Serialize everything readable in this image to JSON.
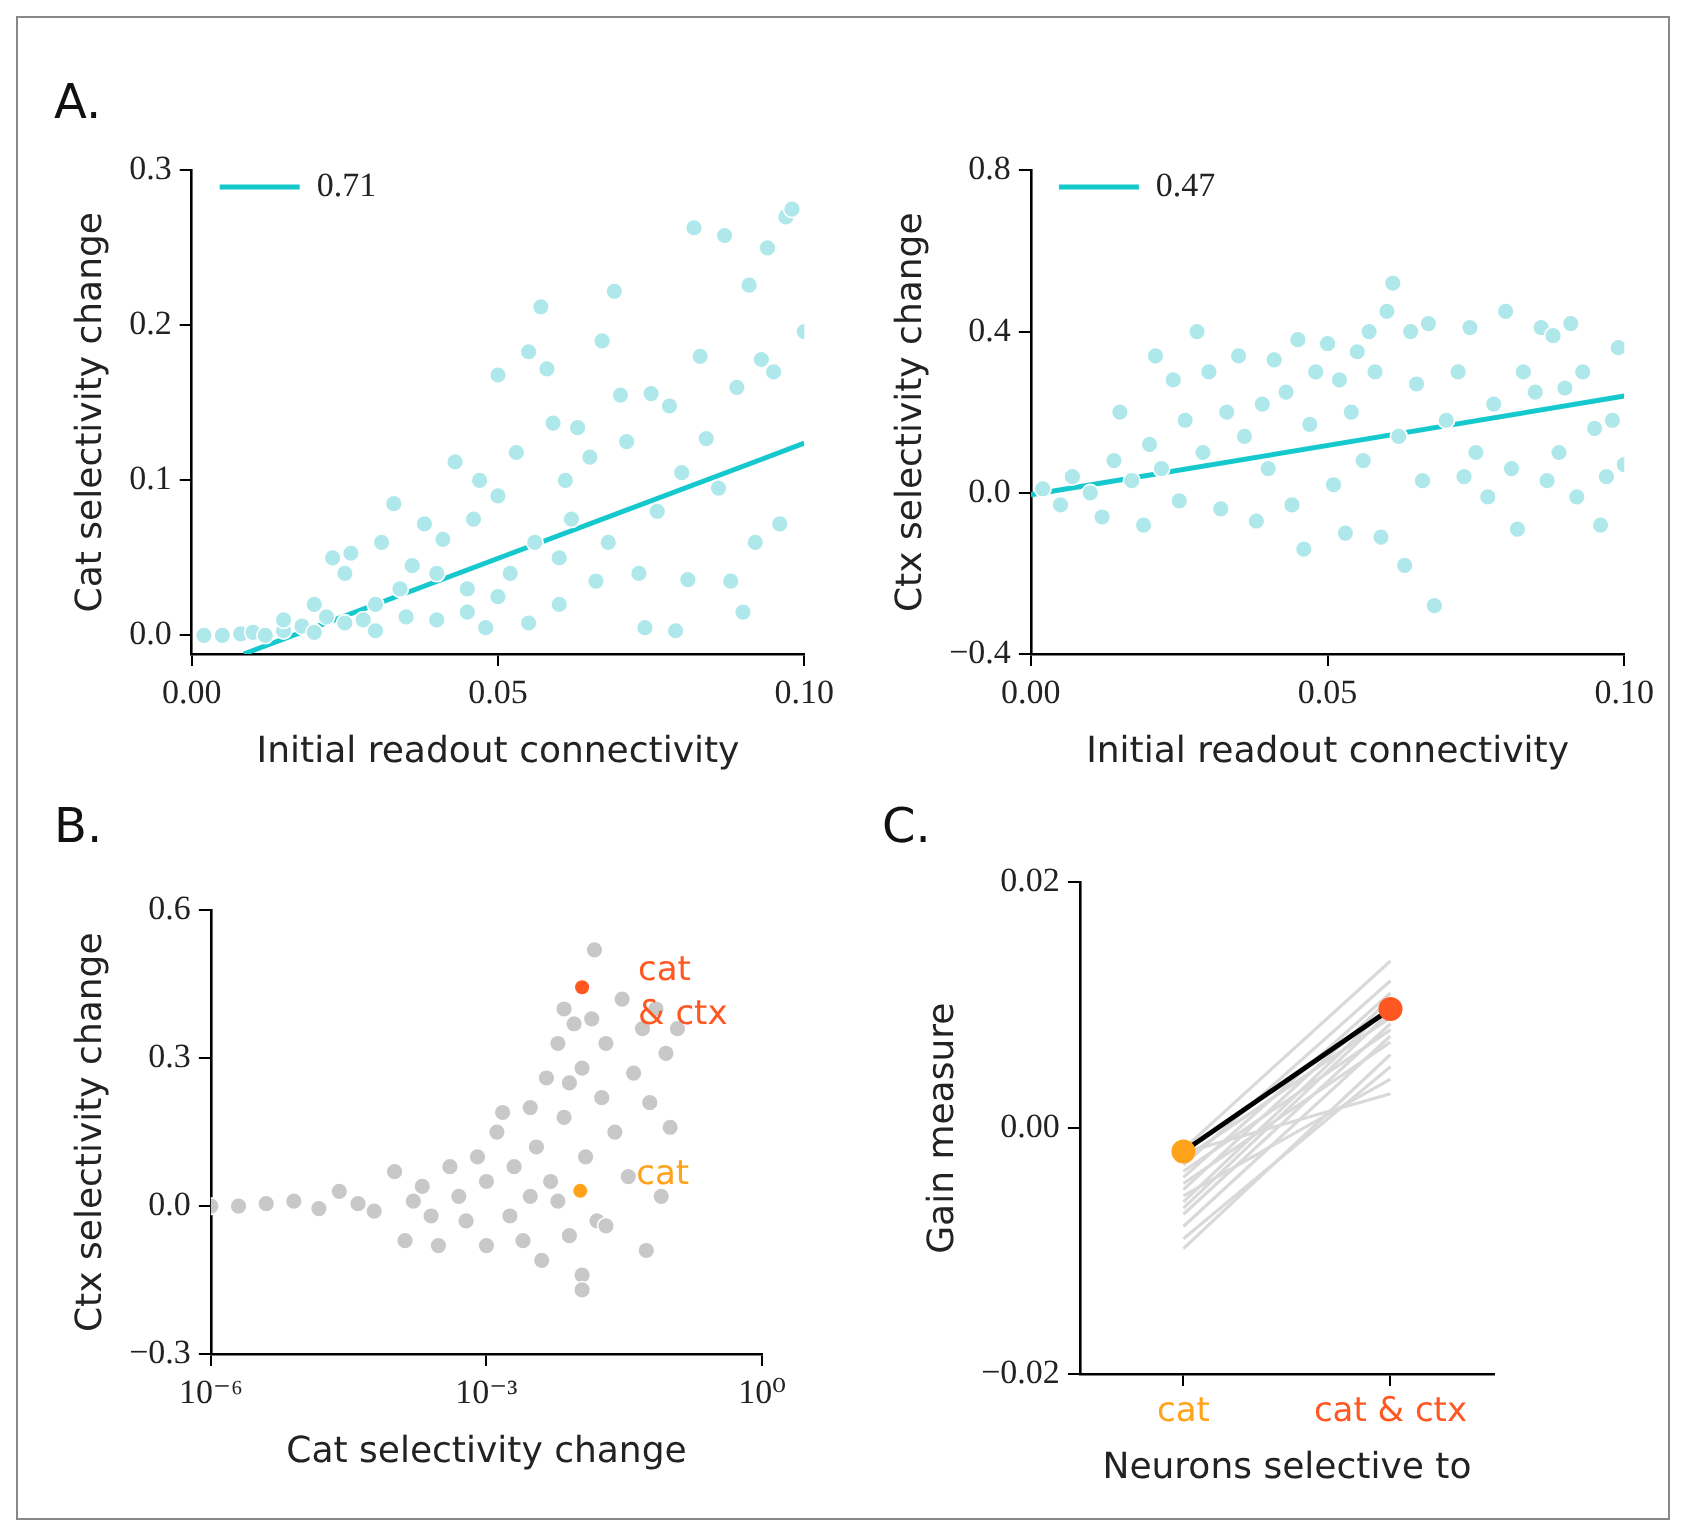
{
  "chart_data": [
    {
      "type": "scatter",
      "title": "A.",
      "xlabel": "Initial readout connectivity",
      "ylabel": "Cat selectivity change",
      "xlim": [
        0,
        0.1
      ],
      "ylim": [
        -0.012,
        0.3
      ],
      "xticks": [
        {
          "value": 0,
          "label": "0.00"
        },
        {
          "value": 0.05,
          "label": "0.05"
        },
        {
          "value": 0.1,
          "label": "0.10"
        }
      ],
      "yticks": [
        {
          "value": 0,
          "label": "0.0"
        },
        0.1,
        0.2,
        0.3
      ],
      "grid": false,
      "legend": "top left",
      "marker": "circle",
      "series": [
        {
          "color": "#aee8ea",
          "x": [
            0.002,
            0.005,
            0.008,
            0.01,
            0.012,
            0.015,
            0.018,
            0.02,
            0.022,
            0.023,
            0.025,
            0.026,
            0.028,
            0.03,
            0.031,
            0.033,
            0.034,
            0.036,
            0.038,
            0.04,
            0.041,
            0.043,
            0.045,
            0.046,
            0.047,
            0.048,
            0.05,
            0.05,
            0.052,
            0.053,
            0.055,
            0.056,
            0.057,
            0.058,
            0.059,
            0.06,
            0.061,
            0.062,
            0.063,
            0.065,
            0.066,
            0.067,
            0.068,
            0.069,
            0.07,
            0.071,
            0.073,
            0.074,
            0.075,
            0.076,
            0.078,
            0.079,
            0.08,
            0.081,
            0.082,
            0.083,
            0.084,
            0.086,
            0.087,
            0.088,
            0.089,
            0.09,
            0.091,
            0.092,
            0.093,
            0.094,
            0.095,
            0.096,
            0.097,
            0.098,
            0.1,
            0.015,
            0.02,
            0.025,
            0.03,
            0.035,
            0.04,
            0.045,
            0.05,
            0.055,
            0.06
          ],
          "values": [
            0,
            0,
            0.001,
            0.002,
            0,
            0.003,
            0.006,
            0.002,
            0.012,
            0.05,
            0.04,
            0.053,
            0.01,
            0.02,
            0.06,
            0.085,
            0.03,
            0.045,
            0.072,
            0.01,
            0.062,
            0.112,
            0.03,
            0.075,
            0.1,
            0.005,
            0.168,
            0.09,
            0.04,
            0.118,
            0.183,
            0.06,
            0.212,
            0.172,
            0.137,
            0.02,
            0.1,
            0.075,
            0.134,
            0.115,
            0.035,
            0.19,
            0.06,
            0.222,
            0.155,
            0.125,
            0.04,
            0.005,
            0.156,
            0.08,
            0.148,
            0.003,
            0.105,
            0.036,
            0.263,
            0.18,
            0.127,
            0.095,
            0.258,
            0.035,
            0.16,
            0.015,
            0.226,
            0.06,
            0.178,
            0.25,
            0.17,
            0.072,
            0.27,
            0.275,
            0.196,
            0.01,
            0.02,
            0.008,
            0.003,
            0.012,
            0.04,
            0.015,
            0.025,
            0.008,
            0.05
          ]
        },
        {
          "type": "line",
          "name": "0.71",
          "color": "#14c8cc",
          "marker": "none",
          "x": [
            0.0085,
            0.1
          ],
          "values": [
            -0.012,
            0.124
          ]
        }
      ]
    },
    {
      "type": "scatter",
      "xlabel": "Initial readout connectivity",
      "ylabel": "Ctx selectivity change",
      "xlim": [
        0,
        0.1
      ],
      "ylim": [
        -0.4,
        0.8
      ],
      "xticks": [
        {
          "value": 0,
          "label": "0.00"
        },
        {
          "value": 0.05,
          "label": "0.05"
        },
        {
          "value": 0.1,
          "label": "0.10"
        }
      ],
      "yticks": [
        {
          "value": -0.4,
          "label": "−0.4"
        },
        {
          "value": 0,
          "label": "0.0"
        },
        0.4,
        0.8
      ],
      "grid": false,
      "legend": "top left",
      "marker": "circle",
      "series": [
        {
          "color": "#aee8ea",
          "x": [
            0.002,
            0.005,
            0.007,
            0.01,
            0.012,
            0.014,
            0.015,
            0.017,
            0.019,
            0.02,
            0.021,
            0.022,
            0.024,
            0.025,
            0.026,
            0.028,
            0.029,
            0.03,
            0.032,
            0.033,
            0.035,
            0.036,
            0.038,
            0.039,
            0.04,
            0.041,
            0.043,
            0.044,
            0.045,
            0.046,
            0.047,
            0.048,
            0.05,
            0.051,
            0.052,
            0.053,
            0.054,
            0.055,
            0.056,
            0.057,
            0.058,
            0.059,
            0.06,
            0.061,
            0.062,
            0.063,
            0.064,
            0.065,
            0.066,
            0.067,
            0.068,
            0.07,
            0.072,
            0.073,
            0.074,
            0.075,
            0.077,
            0.078,
            0.08,
            0.081,
            0.082,
            0.083,
            0.085,
            0.086,
            0.087,
            0.088,
            0.089,
            0.09,
            0.091,
            0.092,
            0.093,
            0.095,
            0.096,
            0.097,
            0.098,
            0.099,
            0.1
          ],
          "values": [
            0.01,
            -0.03,
            0.04,
            0,
            -0.06,
            0.08,
            0.2,
            0.03,
            -0.08,
            0.12,
            0.34,
            0.06,
            0.28,
            -0.02,
            0.18,
            0.4,
            0.1,
            0.3,
            -0.04,
            0.2,
            0.34,
            0.14,
            -0.07,
            0.22,
            0.06,
            0.33,
            0.25,
            -0.03,
            0.38,
            -0.14,
            0.17,
            0.3,
            0.37,
            0.02,
            0.28,
            -0.1,
            0.2,
            0.35,
            0.08,
            0.4,
            0.3,
            -0.11,
            0.45,
            0.52,
            0.14,
            -0.18,
            0.4,
            0.27,
            0.03,
            0.42,
            -0.28,
            0.18,
            0.3,
            0.04,
            0.41,
            0.1,
            -0.01,
            0.22,
            0.45,
            0.06,
            -0.09,
            0.3,
            0.25,
            0.41,
            0.03,
            0.39,
            0.1,
            0.26,
            0.42,
            -0.01,
            0.3,
            0.16,
            -0.08,
            0.04,
            0.18,
            0.36,
            0.07
          ]
        },
        {
          "type": "line",
          "name": "0.47",
          "color": "#14c8cc",
          "marker": "none",
          "x": [
            0,
            0.1
          ],
          "values": [
            -0.005,
            0.24
          ]
        }
      ]
    },
    {
      "type": "scatter",
      "title": "B.",
      "xlabel": "Cat selectivity change",
      "ylabel": "Ctx selectivity change",
      "log": "x",
      "xlim": [
        1e-06,
        1
      ],
      "ylim": [
        -0.3,
        0.6
      ],
      "xticks": [
        {
          "value": 1e-06,
          "label": "10⁻⁶"
        },
        {
          "value": 0.001,
          "label": "10⁻³"
        },
        {
          "value": 1,
          "label": "10⁰"
        }
      ],
      "yticks": [
        {
          "value": -0.3,
          "label": "−0.3"
        },
        {
          "value": 0,
          "label": "0.0"
        },
        0.3,
        0.6
      ],
      "grid": false,
      "marker": "circle",
      "series": [
        {
          "color": "#c8c8c8",
          "x": [
            1e-06,
            2e-06,
            4e-06,
            8e-06,
            1.5e-05,
            2.5e-05,
            4e-05,
            6e-05,
            0.0001,
            0.00013,
            0.00016,
            0.0002,
            0.00025,
            0.0003,
            0.0004,
            0.0005,
            0.0006,
            0.0008,
            0.001,
            0.001,
            0.0013,
            0.0015,
            0.0018,
            0.002,
            0.0025,
            0.003,
            0.0035,
            0.004,
            0.0045,
            0.005,
            0.006,
            0.007,
            0.007,
            0.008,
            0.009,
            0.011,
            0.012,
            0.014,
            0.016,
            0.018,
            0.02,
            0.025,
            0.03,
            0.035,
            0.04,
            0.05,
            0.055,
            0.06,
            0.07,
            0.08,
            0.09,
            0.1,
            0.12,
            0.015,
            0.011,
            0.011,
            0.02,
            0.006,
            0.003,
            0.008
          ],
          "values": [
            0,
            0,
            0.005,
            0.01,
            -0.005,
            0.03,
            0.005,
            -0.01,
            0.07,
            -0.07,
            0.01,
            0.04,
            -0.02,
            -0.08,
            0.08,
            0.02,
            -0.03,
            0.1,
            -0.08,
            0.05,
            0.15,
            0.19,
            -0.02,
            0.08,
            -0.07,
            0.2,
            0.12,
            -0.11,
            0.26,
            0.05,
            0.33,
            0.4,
            0.18,
            -0.06,
            0.37,
            0.28,
            0.1,
            0.38,
            -0.03,
            0.22,
            0.33,
            0.15,
            0.42,
            0.06,
            0.27,
            0.36,
            -0.09,
            0.21,
            0.4,
            0.02,
            0.31,
            0.16,
            0.36,
            0.52,
            -0.14,
            -0.17,
            -0.04,
            0.01,
            0.02,
            0.25
          ]
        },
        {
          "name": "cat & ctx",
          "color": "#ff5722",
          "x": [
            0.011
          ],
          "values": [
            0.444
          ]
        },
        {
          "name": "cat",
          "color": "#ffa31a",
          "x": [
            0.0105
          ],
          "values": [
            0.031
          ]
        }
      ]
    },
    {
      "type": "line",
      "title": "C.",
      "xlabel": "Neurons selective to",
      "ylabel": "Gain measure",
      "categories": [
        "cat",
        "cat & ctx"
      ],
      "ylim": [
        -0.02,
        0.02
      ],
      "yticks": [
        {
          "value": -0.02,
          "label": "−0.02"
        },
        {
          "value": 0,
          "label": "0.00"
        },
        0.02
      ],
      "grid": false,
      "marker": "none",
      "series": [
        {
          "color": "#d9d9d9",
          "values": [
            -0.0017,
            0.0136
          ]
        },
        {
          "color": "#d9d9d9",
          "values": [
            -0.003,
            0.012
          ]
        },
        {
          "color": "#d9d9d9",
          "values": [
            -0.004,
            0.011
          ]
        },
        {
          "color": "#d9d9d9",
          "values": [
            -0.005,
            0.0105
          ]
        },
        {
          "color": "#d9d9d9",
          "values": [
            -0.006,
            0.01
          ]
        },
        {
          "color": "#d9d9d9",
          "values": [
            -0.0025,
            0.009
          ]
        },
        {
          "color": "#d9d9d9",
          "values": [
            -0.007,
            0.0085
          ]
        },
        {
          "color": "#d9d9d9",
          "values": [
            -0.0035,
            0.008
          ]
        },
        {
          "color": "#d9d9d9",
          "values": [
            -0.008,
            0.0075
          ]
        },
        {
          "color": "#d9d9d9",
          "values": [
            -0.0045,
            0.007
          ]
        },
        {
          "color": "#d9d9d9",
          "values": [
            -0.0098,
            0.006
          ]
        },
        {
          "color": "#d9d9d9",
          "values": [
            -0.009,
            0.005
          ]
        },
        {
          "color": "#d9d9d9",
          "values": [
            -0.0055,
            0.004
          ]
        },
        {
          "color": "#d9d9d9",
          "values": [
            -0.002,
            0.0028
          ]
        },
        {
          "color": "#d9d9d9",
          "values": [
            -0.0065,
            0.0095
          ]
        },
        {
          "color": "#000000",
          "colors": [
            "#ffa31a",
            "#ff5722"
          ],
          "marker": "circle",
          "values": [
            -0.0019,
            0.0097
          ]
        }
      ]
    }
  ]
}
